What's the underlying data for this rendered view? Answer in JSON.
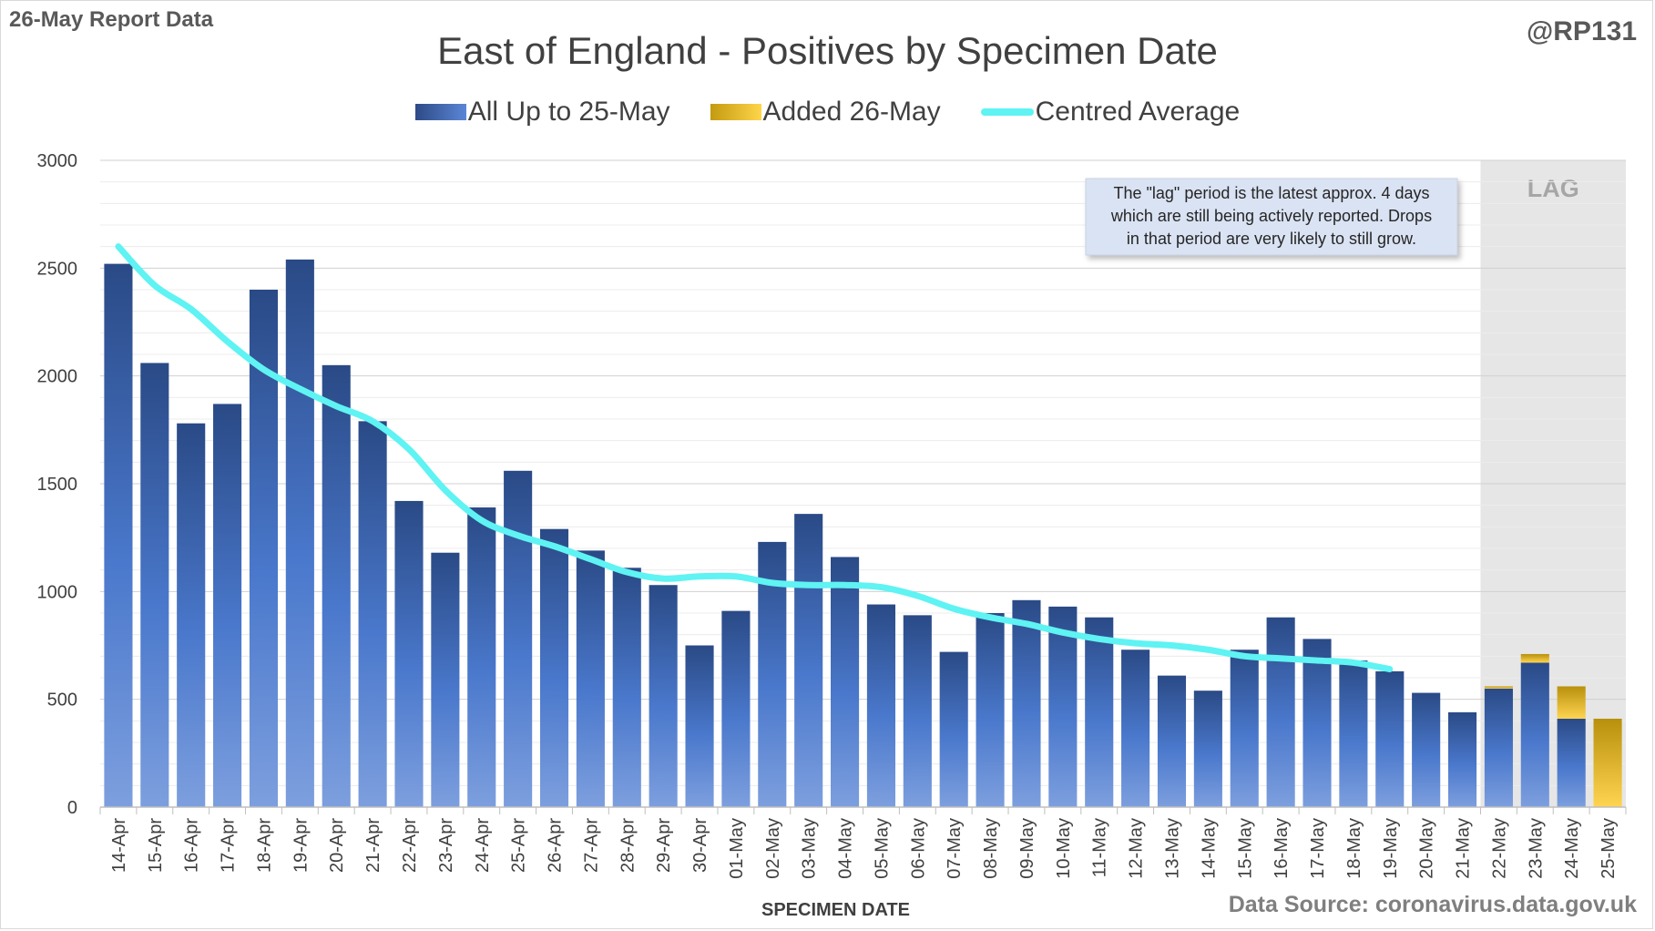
{
  "header": {
    "report_label": "26-May Report Data",
    "handle": "@RP131",
    "title": "East of England - Positives by Specimen Date"
  },
  "legend": {
    "series1": "All Up to 25-May",
    "series2": "Added 26-May",
    "series3": "Centred Average"
  },
  "footer": {
    "source": "Data Source: coronavirus.data.gov.uk"
  },
  "annotation": {
    "lines": [
      "The \"lag\" period is the latest approx. 4 days",
      "which are still being actively reported.  Drops",
      "in that period are very likely to still grow."
    ],
    "lag_label": "LAG"
  },
  "colors": {
    "bar_blue_top": "#2a4a86",
    "bar_blue_bottom": "#5b86d6",
    "bar_gold": "#f0bc1c",
    "average_line": "#5ff3f3",
    "lag_shading": "#e6e6e6"
  },
  "chart_data": {
    "type": "bar",
    "stacked": true,
    "title": "East of England - Positives by Specimen Date",
    "xlabel": "SPECIMEN DATE",
    "ylabel": "",
    "ylim": [
      0,
      3000
    ],
    "yticks": [
      0,
      500,
      1000,
      1500,
      2000,
      2500,
      3000
    ],
    "grid": true,
    "legend_position": "top",
    "categories": [
      "14-Apr",
      "15-Apr",
      "16-Apr",
      "17-Apr",
      "18-Apr",
      "19-Apr",
      "20-Apr",
      "21-Apr",
      "22-Apr",
      "23-Apr",
      "24-Apr",
      "25-Apr",
      "26-Apr",
      "27-Apr",
      "28-Apr",
      "29-Apr",
      "30-Apr",
      "01-May",
      "02-May",
      "03-May",
      "04-May",
      "05-May",
      "06-May",
      "07-May",
      "08-May",
      "09-May",
      "10-May",
      "11-May",
      "12-May",
      "13-May",
      "14-May",
      "15-May",
      "16-May",
      "17-May",
      "18-May",
      "19-May",
      "20-May",
      "21-May",
      "22-May",
      "23-May",
      "24-May",
      "25-May"
    ],
    "series": [
      {
        "name": "All Up to 25-May",
        "values": [
          2520,
          2060,
          1780,
          1870,
          2400,
          2540,
          2050,
          1790,
          1420,
          1180,
          1390,
          1560,
          1290,
          1190,
          1110,
          1030,
          750,
          910,
          1230,
          1360,
          1160,
          940,
          890,
          720,
          900,
          960,
          930,
          880,
          730,
          610,
          540,
          730,
          880,
          780,
          680,
          630,
          530,
          440,
          550,
          670,
          410,
          0
        ]
      },
      {
        "name": "Added 26-May",
        "values": [
          0,
          0,
          0,
          0,
          0,
          0,
          0,
          0,
          0,
          0,
          0,
          0,
          0,
          0,
          0,
          0,
          0,
          0,
          0,
          0,
          0,
          0,
          0,
          0,
          0,
          0,
          0,
          0,
          0,
          0,
          0,
          0,
          0,
          0,
          0,
          0,
          0,
          0,
          10,
          40,
          150,
          410
        ]
      },
      {
        "name": "Centred Average",
        "type": "line",
        "values": [
          2600,
          2420,
          2310,
          2160,
          2030,
          1940,
          1860,
          1790,
          1660,
          1470,
          1330,
          1260,
          1210,
          1150,
          1090,
          1060,
          1070,
          1070,
          1040,
          1030,
          1030,
          1020,
          980,
          920,
          880,
          850,
          810,
          780,
          760,
          750,
          730,
          700,
          690,
          680,
          670,
          640,
          null,
          null,
          null,
          null,
          null,
          null
        ]
      }
    ],
    "lag_categories": [
      "22-May",
      "23-May",
      "24-May",
      "25-May"
    ]
  }
}
